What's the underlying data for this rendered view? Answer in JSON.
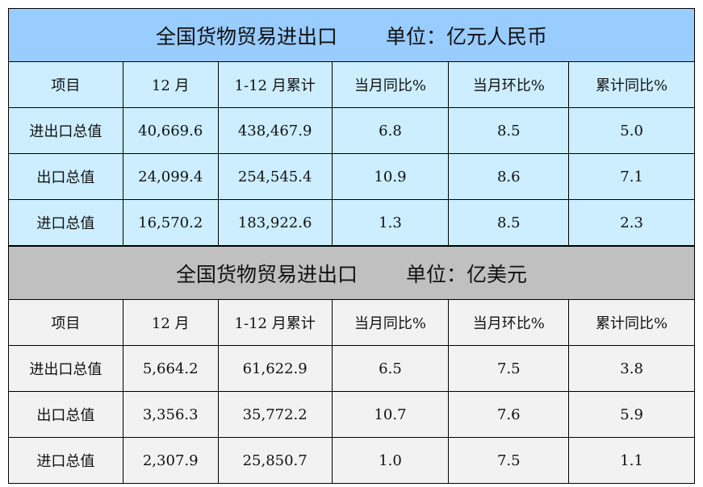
{
  "columns": [
    "项目",
    "12 月",
    "1-12 月累计",
    "当月同比%",
    "当月环比%",
    "累计同比%"
  ],
  "sections": [
    {
      "title": "全国货物贸易进出口",
      "unit": "单位：亿元人民币",
      "rows": [
        [
          "进出口总值",
          "40,669.6",
          "438,467.9",
          "6.8",
          "8.5",
          "5.0"
        ],
        [
          "出口总值",
          "24,099.4",
          "254,545.4",
          "10.9",
          "8.6",
          "7.1"
        ],
        [
          "进口总值",
          "16,570.2",
          "183,922.6",
          "1.3",
          "8.5",
          "2.3"
        ]
      ]
    },
    {
      "title": "全国货物贸易进出口",
      "unit": "单位：亿美元",
      "rows": [
        [
          "进出口总值",
          "5,664.2",
          "61,622.9",
          "6.5",
          "7.5",
          "3.8"
        ],
        [
          "出口总值",
          "3,356.3",
          "35,772.2",
          "10.7",
          "7.6",
          "5.9"
        ],
        [
          "进口总值",
          "2,307.9",
          "25,850.7",
          "1.0",
          "7.5",
          "1.1"
        ]
      ]
    }
  ],
  "colors": {
    "rmb_title_bg": "#99CCFF",
    "rmb_row_bg": "#CCEEFF",
    "usd_title_bg": "#C0C0C0",
    "usd_row_bg": "#F2F2F2"
  }
}
